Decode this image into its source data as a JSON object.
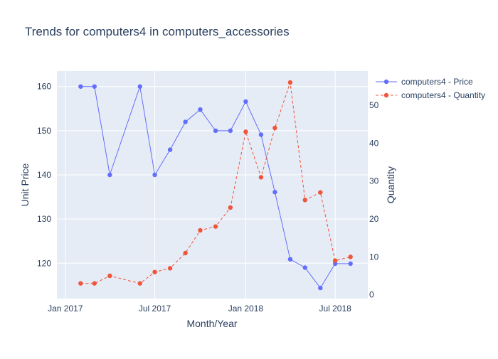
{
  "chart_data": {
    "type": "line",
    "title": "Trends for computers4 in computers_accessories",
    "xlabel": "Month/Year",
    "ylabel": "Unit Price",
    "y2label": "Quantity",
    "x_ticks": [
      "Jan 2017",
      "Jul 2017",
      "Jan 2018",
      "Jul 2018"
    ],
    "y_ticks": [
      120,
      130,
      140,
      150,
      160
    ],
    "y2_ticks": [
      0,
      10,
      20,
      30,
      40,
      50
    ],
    "xlim": [
      "2016-12-15",
      "2018-09-05"
    ],
    "ylim": [
      112,
      163.5
    ],
    "y2lim": [
      -1,
      59
    ],
    "grid": true,
    "legend_position": "top-right",
    "x": [
      "2017-02-01",
      "2017-03-01",
      "2017-04-01",
      "2017-06-01",
      "2017-07-01",
      "2017-08-01",
      "2017-09-01",
      "2017-10-01",
      "2017-11-01",
      "2017-12-01",
      "2018-01-01",
      "2018-02-01",
      "2018-03-01",
      "2018-04-01",
      "2018-05-01",
      "2018-06-01",
      "2018-07-01",
      "2018-08-01"
    ],
    "series": [
      {
        "name": "computers4 - Price",
        "axis": "y",
        "color": "#636efa",
        "dash": "solid",
        "values": [
          160,
          160,
          140,
          160,
          140,
          145.7,
          152,
          154.8,
          150,
          150,
          156.6,
          149.1,
          136.1,
          120.9,
          119,
          114.4,
          119.9,
          119.9
        ]
      },
      {
        "name": "computers4 - Quantity",
        "axis": "y2",
        "color": "#ef553b",
        "dash": "dash",
        "values": [
          3,
          3,
          5,
          3,
          6,
          7,
          11,
          17,
          18,
          23,
          43,
          31,
          44,
          56,
          25,
          27,
          9,
          10
        ]
      }
    ]
  }
}
